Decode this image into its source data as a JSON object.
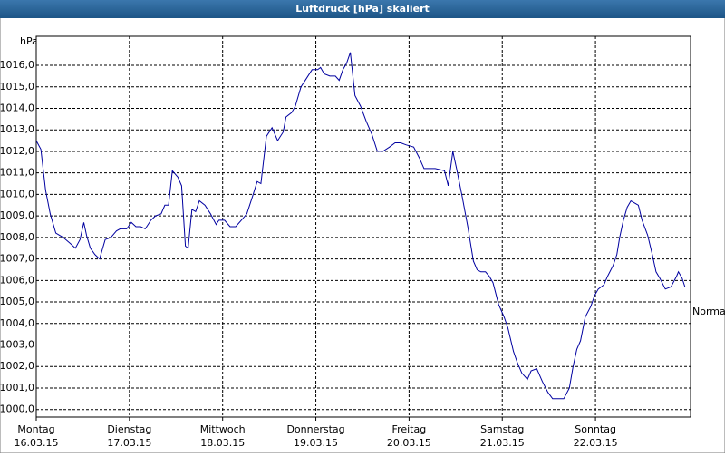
{
  "chart_data": {
    "type": "line",
    "title": "Luftdruck [hPa] skaliert",
    "y_label": "hPa",
    "annotation": "Normal",
    "xlim": [
      0,
      7.02
    ],
    "ylim": [
      999.65,
      1017.35
    ],
    "grid": true,
    "xticks": [
      {
        "value": 0,
        "label": "Montag",
        "date": "16.03.15"
      },
      {
        "value": 1,
        "label": "Dienstag",
        "date": "17.03.15"
      },
      {
        "value": 2,
        "label": "Mittwoch",
        "date": "18.03.15"
      },
      {
        "value": 3,
        "label": "Donnerstag",
        "date": "19.03.15"
      },
      {
        "value": 4,
        "label": "Freitag",
        "date": "20.03.15"
      },
      {
        "value": 5,
        "label": "Samstag",
        "date": "21.03.15"
      },
      {
        "value": 6,
        "label": "Sonntag",
        "date": "22.03.15"
      }
    ],
    "yticks": [
      {
        "value": 1000,
        "label": "1000,0"
      },
      {
        "value": 1001,
        "label": "1001,0"
      },
      {
        "value": 1002,
        "label": "1002,0"
      },
      {
        "value": 1003,
        "label": "1003,0"
      },
      {
        "value": 1004,
        "label": "1004,0"
      },
      {
        "value": 1005,
        "label": "1005,0"
      },
      {
        "value": 1006,
        "label": "1006,0"
      },
      {
        "value": 1007,
        "label": "1007,0"
      },
      {
        "value": 1008,
        "label": "1008,0"
      },
      {
        "value": 1009,
        "label": "1009,0"
      },
      {
        "value": 1010,
        "label": "1010,0"
      },
      {
        "value": 1011,
        "label": "1011,0"
      },
      {
        "value": 1012,
        "label": "1012,0"
      },
      {
        "value": 1013,
        "label": "1013,0"
      },
      {
        "value": 1014,
        "label": "1014,0"
      },
      {
        "value": 1015,
        "label": "1015,0"
      },
      {
        "value": 1016,
        "label": "1016,0"
      }
    ],
    "series": [
      {
        "name": "Luftdruck",
        "color": "#0000a0",
        "x": [
          0,
          0.05,
          0.1,
          0.15,
          0.21,
          0.29,
          0.37,
          0.42,
          0.47,
          0.51,
          0.54,
          0.58,
          0.63,
          0.68,
          0.74,
          0.8,
          0.86,
          0.9,
          0.97,
          1.02,
          1.07,
          1.12,
          1.17,
          1.23,
          1.28,
          1.34,
          1.38,
          1.42,
          1.46,
          1.52,
          1.56,
          1.6,
          1.63,
          1.67,
          1.71,
          1.75,
          1.81,
          1.87,
          1.93,
          1.96,
          2.02,
          2.08,
          2.14,
          2.2,
          2.26,
          2.32,
          2.37,
          2.41,
          2.47,
          2.53,
          2.59,
          2.65,
          2.68,
          2.74,
          2.78,
          2.84,
          2.9,
          2.96,
          3.02,
          3.05,
          3.09,
          3.15,
          3.21,
          3.25,
          3.29,
          3.33,
          3.37,
          3.42,
          3.48,
          3.54,
          3.6,
          3.66,
          3.72,
          3.79,
          3.85,
          3.91,
          3.97,
          4.05,
          4.11,
          4.16,
          4.22,
          4.28,
          4.38,
          4.42,
          4.47,
          4.51,
          4.57,
          4.63,
          4.69,
          4.73,
          4.77,
          4.82,
          4.86,
          4.9,
          4.96,
          5.02,
          5.06,
          5.12,
          5.16,
          5.21,
          5.27,
          5.31,
          5.37,
          5.43,
          5.49,
          5.54,
          5.6,
          5.66,
          5.72,
          5.76,
          5.8,
          5.84,
          5.89,
          5.95,
          5.99,
          6.03,
          6.09,
          6.13,
          6.19,
          6.23,
          6.26,
          6.3,
          6.34,
          6.38,
          6.42,
          6.46,
          6.5,
          6.56,
          6.61,
          6.65,
          6.69,
          6.75,
          6.81,
          6.87,
          6.89,
          6.93,
          6.96
        ],
        "values": [
          1012.5,
          1012.1,
          1010.2,
          1009.1,
          1008.2,
          1008.0,
          1007.7,
          1007.5,
          1007.9,
          1008.7,
          1008.1,
          1007.5,
          1007.2,
          1007.0,
          1007.9,
          1008.0,
          1008.3,
          1008.4,
          1008.4,
          1008.7,
          1008.5,
          1008.5,
          1008.4,
          1008.8,
          1009.0,
          1009.1,
          1009.5,
          1009.5,
          1011.1,
          1010.8,
          1010.4,
          1007.6,
          1007.5,
          1009.3,
          1009.2,
          1009.7,
          1009.5,
          1009.1,
          1008.6,
          1008.8,
          1008.8,
          1008.5,
          1008.5,
          1008.8,
          1009.1,
          1009.9,
          1010.6,
          1010.5,
          1012.7,
          1013.1,
          1012.5,
          1012.9,
          1013.6,
          1013.8,
          1014.1,
          1015.0,
          1015.4,
          1015.8,
          1015.8,
          1015.9,
          1015.6,
          1015.5,
          1015.5,
          1015.3,
          1015.8,
          1016.1,
          1016.6,
          1014.6,
          1014.1,
          1013.4,
          1012.8,
          1012.0,
          1012.0,
          1012.2,
          1012.4,
          1012.4,
          1012.3,
          1012.2,
          1011.7,
          1011.2,
          1011.2,
          1011.2,
          1011.1,
          1010.4,
          1012.0,
          1011.2,
          1009.9,
          1008.5,
          1006.9,
          1006.5,
          1006.4,
          1006.4,
          1006.2,
          1005.9,
          1004.9,
          1004.3,
          1003.8,
          1002.7,
          1002.2,
          1001.7,
          1001.4,
          1001.8,
          1001.9,
          1001.3,
          1000.8,
          1000.5,
          1000.5,
          1000.5,
          1001.0,
          1002.0,
          1002.8,
          1003.2,
          1004.3,
          1004.8,
          1005.3,
          1005.6,
          1005.8,
          1006.2,
          1006.7,
          1007.2,
          1008.0,
          1008.8,
          1009.4,
          1009.7,
          1009.6,
          1009.5,
          1008.8,
          1008.1,
          1007.2,
          1006.4,
          1006.1,
          1005.6,
          1005.7,
          1006.2,
          1006.4,
          1006.1,
          1005.7
        ]
      }
    ]
  }
}
